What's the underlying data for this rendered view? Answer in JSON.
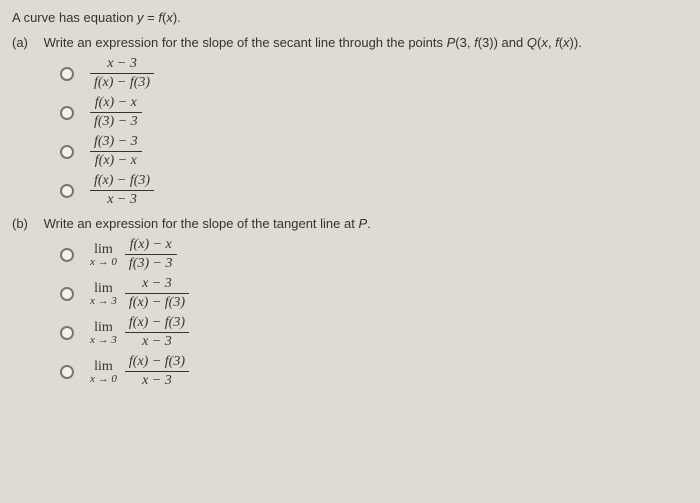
{
  "background_color": "#e0dbd2",
  "text_color": "#333333",
  "prompt": "A curve has equation y = f(x).",
  "partA": {
    "label": "(a)",
    "text": "Write an expression for the slope of the secant line through the points P(3, f(3)) and Q(x, f(x)).",
    "options": [
      {
        "num": "x − 3",
        "den": "f(x) − f(3)"
      },
      {
        "num": "f(x) − x",
        "den": "f(3) − 3"
      },
      {
        "num": "f(3) − 3",
        "den": "f(x) − x"
      },
      {
        "num": "f(x) − f(3)",
        "den": "x − 3"
      }
    ]
  },
  "partB": {
    "label": "(b)",
    "text": "Write an expression for the slope of the tangent line at P.",
    "options": [
      {
        "limit": "x → 0",
        "num": "f(x) − x",
        "den": "f(3) − 3"
      },
      {
        "limit": "x → 3",
        "num": "x − 3",
        "den": "f(x) − f(3)"
      },
      {
        "limit": "x → 3",
        "num": "f(x) − f(3)",
        "den": "x − 3"
      },
      {
        "limit": "x → 0",
        "num": "f(x) − f(3)",
        "den": "x − 3"
      }
    ]
  }
}
